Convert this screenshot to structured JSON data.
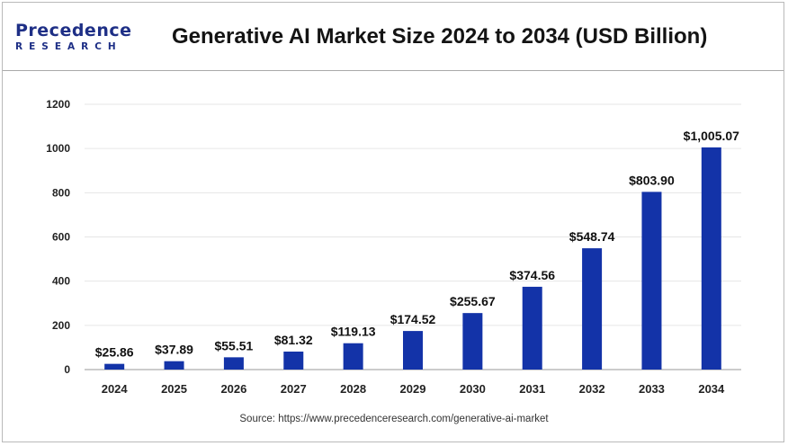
{
  "logo": {
    "top": "Precedence",
    "bottom": "RESEARCH"
  },
  "title": "Generative AI Market Size 2024 to 2034 (USD Billion)",
  "source": "Source: https://www.precedenceresearch.com/generative-ai-market",
  "colors": {
    "bar": "#1333a8",
    "brand": "#1e2f86",
    "grid": "#e6e6e6",
    "axis": "#9a9a9a"
  },
  "chart_data": {
    "type": "bar",
    "categories": [
      "2024",
      "2025",
      "2026",
      "2027",
      "2028",
      "2029",
      "2030",
      "2031",
      "2032",
      "2033",
      "2034"
    ],
    "values": [
      25.86,
      37.89,
      55.51,
      81.32,
      119.13,
      174.52,
      255.67,
      374.56,
      548.74,
      803.9,
      1005.07
    ],
    "data_labels": [
      "$25.86",
      "$37.89",
      "$55.51",
      "$81.32",
      "$119.13",
      "$174.52",
      "$255.67",
      "$374.56",
      "$548.74",
      "$803.90",
      "$1,005.07"
    ],
    "yticks": [
      0,
      200,
      400,
      600,
      800,
      1000,
      1200
    ],
    "ylim": [
      0,
      1200
    ],
    "grid": true,
    "legend": "none",
    "title": "Generative AI Market Size 2024 to 2034 (USD Billion)",
    "xlabel": "",
    "ylabel": ""
  }
}
